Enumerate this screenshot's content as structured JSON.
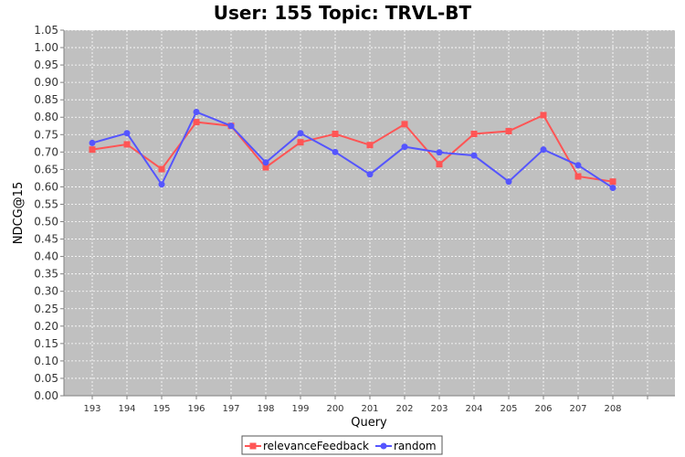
{
  "chart_data": {
    "type": "line",
    "title": "User: 155 Topic: TRVL-BT",
    "xlabel": "Query",
    "ylabel": "NDCG@15",
    "categories": [
      "193",
      "194",
      "195",
      "196",
      "197",
      "198",
      "199",
      "200",
      "201",
      "202",
      "203",
      "204",
      "205",
      "206",
      "207",
      "208"
    ],
    "ylim": [
      0,
      1.05
    ],
    "ytick_step": 0.05,
    "ytick_labels": [
      "0.00",
      "0.05",
      "0.10",
      "0.15",
      "0.20",
      "0.25",
      "0.30",
      "0.35",
      "0.40",
      "0.45",
      "0.50",
      "0.55",
      "0.60",
      "0.65",
      "0.70",
      "0.75",
      "0.80",
      "0.85",
      "0.90",
      "0.95",
      "1.00",
      "1.05"
    ],
    "grid": true,
    "legend_position": "bottom",
    "series": [
      {
        "name": "relevanceFeedback",
        "color": "#ff5555",
        "marker": "square",
        "values": [
          0.707,
          0.722,
          0.651,
          0.786,
          0.775,
          0.656,
          0.728,
          0.752,
          0.72,
          0.78,
          0.665,
          0.752,
          0.76,
          0.806,
          0.63,
          0.615
        ]
      },
      {
        "name": "random",
        "color": "#5555ff",
        "marker": "circle",
        "values": [
          0.726,
          0.754,
          0.607,
          0.815,
          0.775,
          0.67,
          0.754,
          0.7,
          0.636,
          0.715,
          0.699,
          0.69,
          0.615,
          0.707,
          0.662,
          0.597
        ]
      }
    ]
  }
}
